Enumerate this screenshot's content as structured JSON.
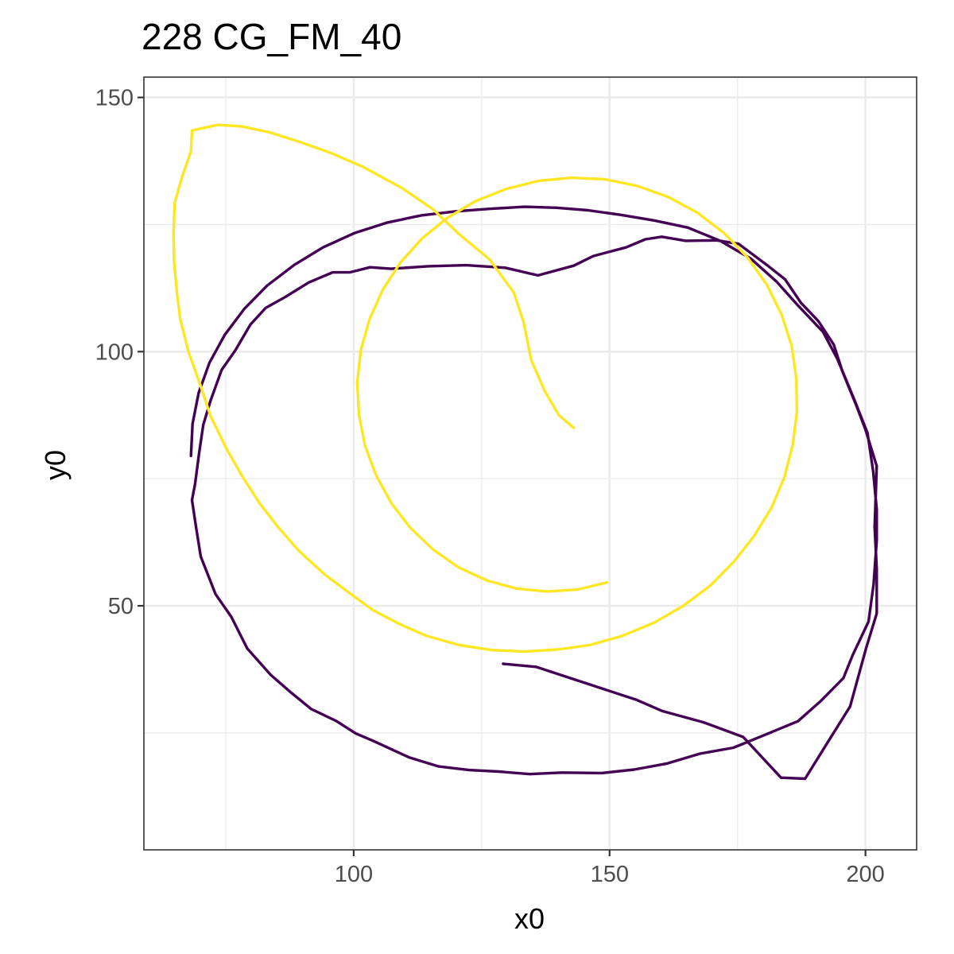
{
  "chart_data": {
    "type": "line",
    "title": "228 CG_FM_40",
    "xlabel": "x0",
    "ylabel": "y0",
    "xlim": [
      59,
      210
    ],
    "ylim": [
      2,
      154
    ],
    "x_ticks": [
      100,
      150,
      200
    ],
    "y_ticks": [
      50,
      100,
      150
    ],
    "x_minor": [
      75,
      125,
      175
    ],
    "y_minor": [
      25,
      75,
      125
    ],
    "grid": true,
    "legend": "none",
    "series": [
      {
        "color": "#440154",
        "points": [
          [
            129.2,
            38.6
          ],
          [
            135.6,
            38.0
          ],
          [
            155.3,
            31.5
          ],
          [
            160.3,
            29.3
          ],
          [
            168.3,
            27.1
          ],
          [
            176.1,
            24.2
          ],
          [
            183.5,
            16.2
          ],
          [
            188.2,
            16.0
          ],
          [
            193.2,
            24.1
          ],
          [
            197.0,
            30.2
          ],
          [
            200.1,
            41.6
          ],
          [
            202.2,
            48.5
          ],
          [
            202.2,
            57.2
          ],
          [
            201.8,
            65.5
          ],
          [
            202.2,
            77.5
          ],
          [
            200.0,
            84.7
          ],
          [
            198.1,
            89.7
          ],
          [
            195.5,
            96.1
          ],
          [
            193.8,
            101.4
          ],
          [
            190.8,
            106.0
          ],
          [
            187.4,
            109.6
          ],
          [
            184.3,
            114.2
          ],
          [
            180.8,
            117.0
          ],
          [
            175.2,
            121.2
          ],
          [
            170.9,
            121.9
          ],
          [
            164.9,
            121.8
          ],
          [
            160.2,
            122.6
          ],
          [
            157.0,
            122.1
          ],
          [
            153.2,
            120.5
          ],
          [
            146.8,
            118.8
          ],
          [
            143.0,
            116.9
          ],
          [
            136.0,
            115.0
          ],
          [
            129.6,
            116.5
          ],
          [
            122.0,
            117.0
          ],
          [
            114.5,
            116.8
          ],
          [
            107.3,
            116.3
          ],
          [
            103.2,
            116.6
          ],
          [
            99.2,
            115.6
          ],
          [
            95.9,
            115.6
          ],
          [
            91.2,
            113.6
          ],
          [
            86.7,
            110.8
          ],
          [
            82.8,
            108.6
          ],
          [
            79.8,
            105.3
          ],
          [
            76.9,
            100.3
          ],
          [
            74.2,
            96.4
          ],
          [
            72.0,
            90.3
          ],
          [
            70.6,
            85.6
          ],
          [
            69.8,
            80.1
          ],
          [
            69.0,
            74.0
          ],
          [
            68.4,
            70.8
          ],
          [
            69.2,
            65.4
          ],
          [
            70.1,
            59.7
          ],
          [
            73.0,
            52.3
          ],
          [
            76.1,
            47.8
          ],
          [
            79.2,
            41.6
          ],
          [
            83.8,
            36.4
          ],
          [
            87.7,
            33.0
          ],
          [
            91.7,
            29.7
          ],
          [
            96.5,
            27.4
          ],
          [
            100.4,
            24.9
          ],
          [
            103.9,
            23.4
          ],
          [
            110.8,
            20.2
          ],
          [
            116.6,
            18.4
          ],
          [
            122.5,
            17.7
          ],
          [
            128.3,
            17.4
          ],
          [
            134.4,
            16.9
          ],
          [
            140.7,
            17.2
          ],
          [
            148.5,
            17.1
          ],
          [
            154.8,
            17.8
          ],
          [
            161.3,
            19.0
          ],
          [
            167.6,
            20.9
          ],
          [
            174.2,
            22.1
          ],
          [
            179.8,
            24.4
          ],
          [
            186.8,
            27.3
          ],
          [
            191.3,
            31.3
          ],
          [
            195.7,
            35.8
          ],
          [
            197.5,
            40.3
          ],
          [
            200.6,
            46.9
          ],
          [
            201.6,
            54.3
          ],
          [
            202.2,
            62.9
          ],
          [
            202.2,
            69.0
          ],
          [
            201.5,
            76.5
          ],
          [
            200.4,
            84.0
          ],
          [
            197.8,
            90.6
          ],
          [
            194.5,
            98.6
          ],
          [
            191.7,
            103.9
          ],
          [
            186.6,
            109.3
          ],
          [
            182.7,
            113.7
          ],
          [
            177.6,
            118.3
          ],
          [
            171.6,
            121.8
          ],
          [
            165.3,
            124.4
          ],
          [
            158.7,
            125.8
          ],
          [
            152.2,
            126.9
          ],
          [
            145.8,
            127.8
          ],
          [
            139.6,
            128.3
          ],
          [
            133.4,
            128.5
          ],
          [
            126.8,
            128.1
          ],
          [
            120.0,
            127.6
          ],
          [
            113.2,
            126.8
          ],
          [
            106.6,
            125.4
          ],
          [
            100.1,
            123.3
          ],
          [
            94.0,
            120.5
          ],
          [
            88.3,
            117.0
          ],
          [
            83.1,
            113.0
          ],
          [
            78.6,
            108.4
          ],
          [
            74.8,
            103.3
          ],
          [
            71.8,
            97.8
          ],
          [
            69.7,
            91.9
          ],
          [
            68.5,
            85.8
          ],
          [
            68.2,
            79.5
          ]
        ]
      },
      {
        "color": "#fde725",
        "points": [
          [
            143.0,
            85.0
          ],
          [
            140.1,
            87.5
          ],
          [
            137.4,
            92.1
          ],
          [
            134.7,
            98.3
          ],
          [
            133.2,
            105.8
          ],
          [
            131.3,
            111.6
          ],
          [
            126.6,
            118.1
          ],
          [
            120.5,
            123.2
          ],
          [
            115.5,
            128.0
          ],
          [
            109.4,
            132.2
          ],
          [
            101.5,
            136.5
          ],
          [
            95.5,
            139.1
          ],
          [
            89.3,
            141.3
          ],
          [
            83.7,
            143.1
          ],
          [
            78.1,
            144.3
          ],
          [
            73.4,
            144.6
          ],
          [
            68.4,
            143.5
          ],
          [
            68.2,
            139.4
          ],
          [
            66.5,
            134.5
          ],
          [
            65.0,
            129.2
          ],
          [
            64.8,
            123.2
          ],
          [
            64.9,
            117.6
          ],
          [
            65.5,
            111.3
          ],
          [
            66.1,
            106.4
          ],
          [
            67.7,
            100.0
          ],
          [
            70.1,
            93.2
          ],
          [
            72.0,
            87.4
          ],
          [
            75.1,
            81.0
          ],
          [
            78.2,
            75.5
          ],
          [
            81.6,
            70.2
          ],
          [
            85.2,
            65.5
          ],
          [
            89.3,
            60.8
          ],
          [
            94.4,
            56.1
          ],
          [
            99.2,
            52.5
          ],
          [
            103.7,
            49.2
          ],
          [
            109.0,
            46.4
          ],
          [
            114.2,
            44.1
          ],
          [
            120.5,
            42.3
          ],
          [
            127.0,
            41.3
          ],
          [
            133.4,
            41.0
          ],
          [
            139.8,
            41.4
          ],
          [
            146.2,
            42.3
          ],
          [
            152.5,
            44.1
          ],
          [
            158.7,
            46.7
          ],
          [
            164.4,
            50.0
          ],
          [
            169.7,
            54.0
          ],
          [
            174.3,
            58.7
          ],
          [
            178.3,
            63.8
          ],
          [
            181.7,
            69.4
          ],
          [
            184.2,
            75.4
          ],
          [
            185.8,
            81.7
          ],
          [
            186.6,
            88.1
          ],
          [
            186.5,
            94.6
          ],
          [
            185.6,
            101.1
          ],
          [
            183.6,
            107.3
          ],
          [
            180.7,
            113.2
          ],
          [
            176.9,
            118.6
          ],
          [
            172.4,
            123.3
          ],
          [
            167.2,
            127.3
          ],
          [
            161.5,
            130.4
          ],
          [
            155.4,
            132.6
          ],
          [
            149.1,
            133.9
          ],
          [
            142.6,
            134.2
          ],
          [
            136.1,
            133.6
          ],
          [
            129.8,
            132.0
          ],
          [
            123.8,
            129.6
          ],
          [
            118.3,
            126.3
          ],
          [
            113.4,
            122.3
          ],
          [
            109.1,
            117.5
          ],
          [
            105.7,
            112.2
          ],
          [
            103.1,
            106.4
          ],
          [
            101.4,
            100.3
          ],
          [
            100.7,
            94.0
          ],
          [
            101.0,
            87.7
          ],
          [
            102.2,
            81.5
          ],
          [
            104.4,
            75.6
          ],
          [
            107.4,
            70.1
          ],
          [
            111.2,
            65.2
          ],
          [
            115.6,
            61.0
          ],
          [
            120.6,
            57.5
          ],
          [
            126.0,
            55.0
          ],
          [
            131.8,
            53.4
          ],
          [
            137.7,
            52.8
          ],
          [
            143.7,
            53.2
          ],
          [
            149.5,
            54.6
          ]
        ]
      }
    ]
  }
}
